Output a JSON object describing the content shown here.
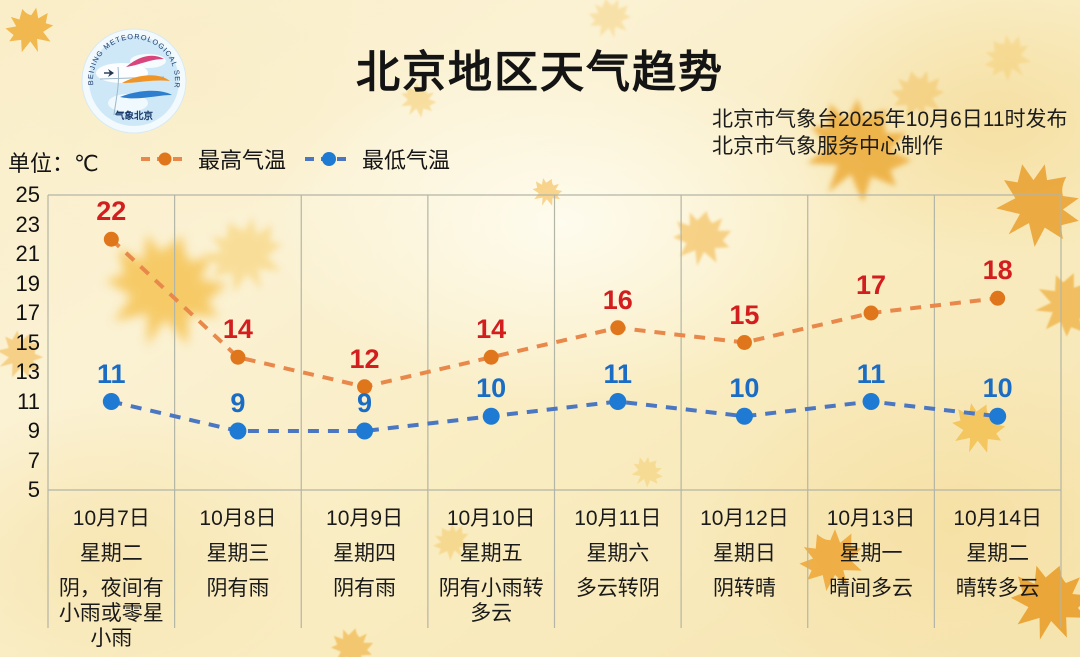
{
  "title": "北京地区天气趋势",
  "issue": {
    "line1": "北京市气象台2025年10月6日11时发布",
    "line2": "北京市气象服务中心制作"
  },
  "unit_label": "单位：℃",
  "legend": {
    "max": "最高气温",
    "min": "最低气温"
  },
  "logo": {
    "ring_text": "BEIJING METEOROLOGICAL SERVICE",
    "bottom_text": "气象北京"
  },
  "chart_data": {
    "type": "line",
    "title": "北京地区天气趋势",
    "categories": [
      "10月7日",
      "10月8日",
      "10月9日",
      "10月10日",
      "10月11日",
      "10月12日",
      "10月13日",
      "10月14日"
    ],
    "weekdays": [
      "星期二",
      "星期三",
      "星期四",
      "星期五",
      "星期六",
      "星期日",
      "星期一",
      "星期二"
    ],
    "weather": [
      "阴，夜间有小雨或零星小雨",
      "阴有雨",
      "阴有雨",
      "阴有小雨转多云",
      "多云转阴",
      "阴转晴",
      "晴间多云",
      "晴转多云"
    ],
    "series": [
      {
        "name": "最高气温",
        "values": [
          22,
          14,
          12,
          14,
          16,
          15,
          17,
          18
        ],
        "line_color": "#E8884B",
        "marker_color": "#E0761B",
        "label_color": "#D21E1E"
      },
      {
        "name": "最低气温",
        "values": [
          11,
          9,
          9,
          10,
          11,
          10,
          11,
          10
        ],
        "line_color": "#4B77C2",
        "marker_color": "#1E7AD2",
        "label_color": "#1A6CC4"
      }
    ],
    "ylim": [
      5,
      25
    ],
    "yticks": [
      25,
      23,
      21,
      19,
      17,
      15,
      13,
      11,
      9,
      7,
      5
    ],
    "grid": "vertical-only",
    "legend_position": "top-left",
    "grid_color": "#B3B5A6"
  }
}
